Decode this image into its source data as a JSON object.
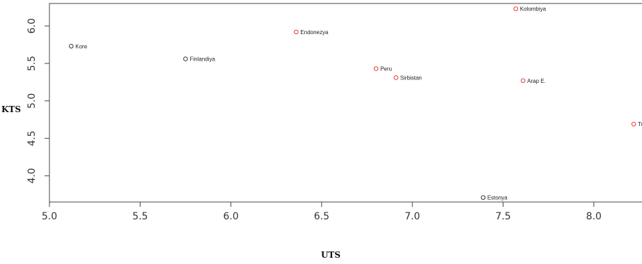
{
  "chart_data": {
    "type": "scatter",
    "xlabel": "UTS",
    "ylabel": "KTS",
    "xlim": [
      5.0,
      8.3
    ],
    "ylim": [
      3.65,
      6.3
    ],
    "x_ticks": [
      "5.0",
      "5.5",
      "6.0",
      "6.5",
      "7.0",
      "7.5",
      "8.0"
    ],
    "y_ticks": [
      "4.0",
      "4.5",
      "5.0",
      "5.5",
      "6.0"
    ],
    "grid": false,
    "points": [
      {
        "label": "Kore",
        "x": 5.12,
        "y": 5.73,
        "color": "#333333"
      },
      {
        "label": "Finlandiya",
        "x": 5.75,
        "y": 5.56,
        "color": "#333333"
      },
      {
        "label": "Endonezya",
        "x": 6.36,
        "y": 5.92,
        "color": "#e53935"
      },
      {
        "label": "Peru",
        "x": 6.8,
        "y": 5.43,
        "color": "#e53935"
      },
      {
        "label": "Sirbistan",
        "x": 6.91,
        "y": 5.31,
        "color": "#e53935"
      },
      {
        "label": "Kolombiya",
        "x": 7.57,
        "y": 6.23,
        "color": "#e53935"
      },
      {
        "label": "Arap E.",
        "x": 7.61,
        "y": 5.27,
        "color": "#e53935"
      },
      {
        "label": "Estonya",
        "x": 7.39,
        "y": 3.71,
        "color": "#333333"
      },
      {
        "label": "Tur",
        "x": 8.22,
        "y": 4.69,
        "color": "#e53935"
      }
    ]
  }
}
